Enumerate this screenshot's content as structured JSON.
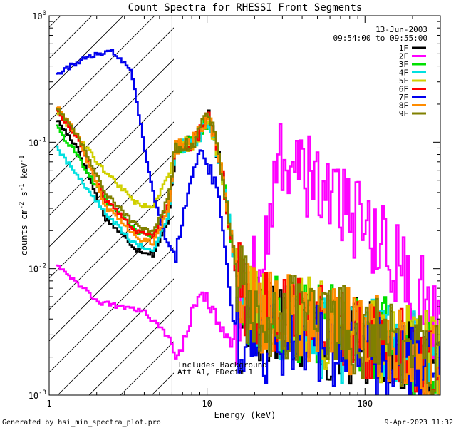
{
  "chart_data": {
    "type": "line",
    "title": "Count Spectra for RHESSI Front Segments",
    "xlabel": "Energy (keV)",
    "ylabel": "counts cm^-2 s^-1 keV^-1",
    "ylabel_parts": {
      "base": "counts cm",
      "exp1": "-2",
      "mid": " s",
      "exp2": "-1",
      "mid2": " keV",
      "exp3": "-1"
    },
    "xscale": "log",
    "yscale": "log",
    "xlim": [
      1,
      300
    ],
    "ylim": [
      0.001,
      1
    ],
    "x_ticks": [
      {
        "value": 1,
        "label": "1"
      },
      {
        "value": 10,
        "label": "10"
      },
      {
        "value": 100,
        "label": "100"
      }
    ],
    "y_ticks": [
      {
        "value": 1,
        "base": "10",
        "exp": "0"
      },
      {
        "value": 0.1,
        "base": "10",
        "exp": "-1"
      },
      {
        "value": 0.01,
        "base": "10",
        "exp": "-2"
      },
      {
        "value": 0.001,
        "base": "10",
        "exp": "-3"
      }
    ],
    "date": "13-Jun-2003",
    "time_range": "09:54:00 to 09:55:00",
    "excluded_region": {
      "x_min": 1,
      "x_max": 6,
      "hatched": true
    },
    "annotation": [
      "Includes Background",
      "Att A1, FDecim 1"
    ],
    "legend_position": "top-right",
    "series": [
      {
        "name": "1F",
        "color": "#000000",
        "start_y": 0.15,
        "low_y": 0.013,
        "peak_y": 0.16,
        "tail_y": 0.004,
        "end_y": 0.0015
      },
      {
        "name": "2F",
        "color": "#ff00ff",
        "start_y": 0.011,
        "low_y": 0.002,
        "peak_y": 0.007,
        "tail_y": 0.08,
        "end_y": 0.003
      },
      {
        "name": "3F",
        "color": "#00e000",
        "start_y": 0.13,
        "low_y": 0.018,
        "peak_y": 0.15,
        "tail_y": 0.005,
        "end_y": 0.0015
      },
      {
        "name": "4F",
        "color": "#00e0e0",
        "start_y": 0.09,
        "low_y": 0.014,
        "peak_y": 0.14,
        "tail_y": 0.004,
        "end_y": 0.0018
      },
      {
        "name": "5F",
        "color": "#d0d000",
        "start_y": 0.18,
        "low_y": 0.03,
        "peak_y": 0.14,
        "tail_y": 0.005,
        "end_y": 0.002
      },
      {
        "name": "6F",
        "color": "#ff0000",
        "start_y": 0.18,
        "low_y": 0.018,
        "peak_y": 0.16,
        "tail_y": 0.005,
        "end_y": 0.0016
      },
      {
        "name": "7F",
        "color": "#0000ee",
        "start_y": 0.35,
        "low_y": 0.012,
        "peak_y": 0.09,
        "tail_y": 0.003,
        "end_y": 0.0013
      },
      {
        "name": "8F",
        "color": "#ff8c00",
        "start_y": 0.19,
        "low_y": 0.016,
        "peak_y": 0.17,
        "tail_y": 0.005,
        "end_y": 0.0018
      },
      {
        "name": "9F",
        "color": "#808000",
        "start_y": 0.19,
        "low_y": 0.02,
        "peak_y": 0.17,
        "tail_y": 0.005,
        "end_y": 0.0016
      }
    ]
  },
  "footer": {
    "generated_by": "Generated by hsi_min_spectra_plot.pro",
    "timestamp": "9-Apr-2023 11:32"
  }
}
